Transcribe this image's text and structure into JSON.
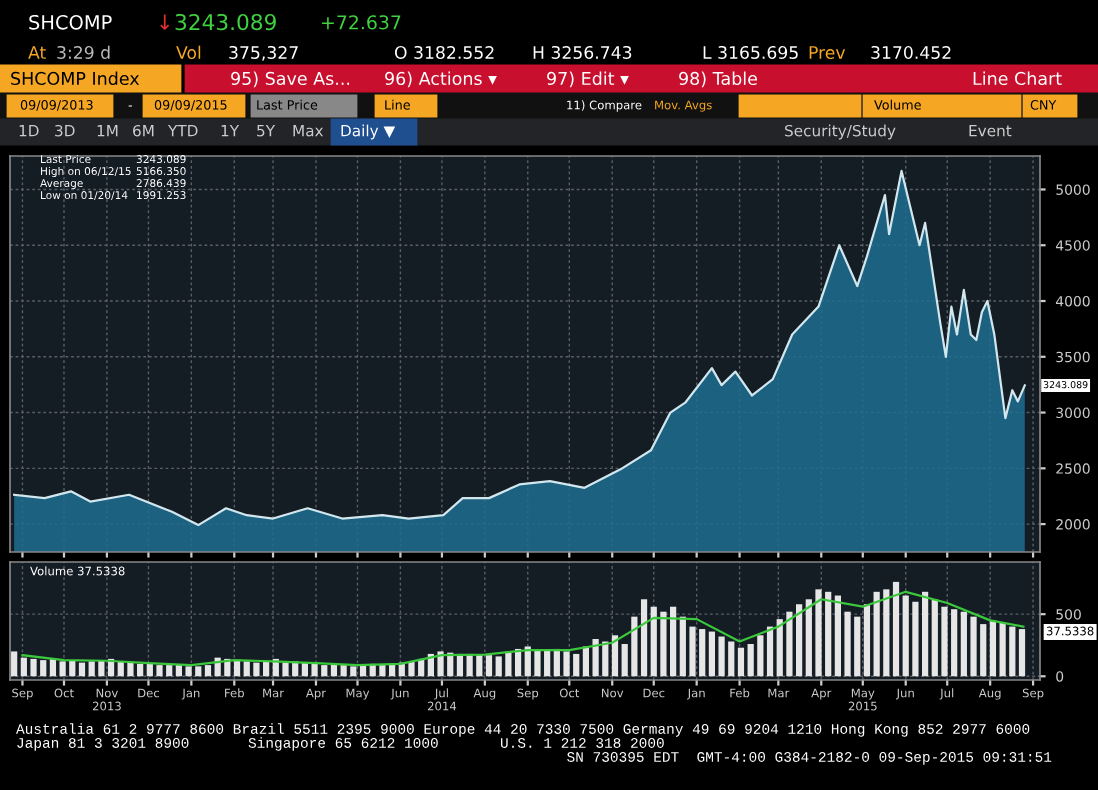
{
  "chart_data": [
    {
      "type": "area",
      "grid": true,
      "tick_labels": "y",
      "xlim": [
        "2013-09-06",
        "2015-09-20"
      ],
      "ylim": [
        1750,
        5300
      ],
      "yticks": [
        2000,
        2500,
        3000,
        3500,
        4000,
        4500,
        5000
      ],
      "xticks": [
        {
          "value": "2013-09-15",
          "label": null
        },
        {
          "value": "2013-10-15",
          "label": null
        },
        {
          "value": "2013-11-15",
          "label": null
        },
        {
          "value": "2013-12-15",
          "label": null
        },
        {
          "value": "2014-01-15",
          "label": null
        },
        {
          "value": "2014-02-15",
          "label": null
        },
        {
          "value": "2014-03-15",
          "label": null
        },
        {
          "value": "2014-04-15",
          "label": null
        },
        {
          "value": "2014-05-15",
          "label": null
        },
        {
          "value": "2014-06-15",
          "label": null
        },
        {
          "value": "2014-07-15",
          "label": null
        },
        {
          "value": "2014-08-15",
          "label": null
        },
        {
          "value": "2014-09-15",
          "label": null
        },
        {
          "value": "2014-10-15",
          "label": null
        },
        {
          "value": "2014-11-15",
          "label": null
        },
        {
          "value": "2014-12-15",
          "label": null
        },
        {
          "value": "2015-01-15",
          "label": null
        },
        {
          "value": "2015-02-15",
          "label": null
        },
        {
          "value": "2015-03-15",
          "label": null
        },
        {
          "value": "2015-04-15",
          "label": null
        },
        {
          "value": "2015-05-15",
          "label": null
        },
        {
          "value": "2015-06-15",
          "label": null
        },
        {
          "value": "2015-07-15",
          "label": null
        },
        {
          "value": "2015-08-15",
          "label": null
        },
        {
          "value": "2015-09-15",
          "label": null
        }
      ],
      "series": [
        {
          "color": "#d2e6ee",
          "x": [
            "2013-09-09",
            "2013-10-01",
            "2013-10-20",
            "2013-11-03",
            "2013-12-01",
            "2014-01-01",
            "2014-01-20",
            "2014-02-09",
            "2014-02-24",
            "2014-03-15",
            "2014-04-09",
            "2014-05-04",
            "2014-06-02",
            "2014-06-21",
            "2014-07-16",
            "2014-07-30",
            "2014-08-18",
            "2014-09-09",
            "2014-10-01",
            "2014-10-26",
            "2014-11-21",
            "2014-12-13",
            "2014-12-27",
            "2015-01-07",
            "2015-01-26",
            "2015-02-02",
            "2015-02-12",
            "2015-02-24",
            "2015-03-11",
            "2015-03-25",
            "2015-04-13",
            "2015-04-28",
            "2015-05-11",
            "2015-05-18",
            "2015-05-31",
            "2015-06-03",
            "2015-06-12",
            "2015-06-25",
            "2015-06-29",
            "2015-07-10",
            "2015-07-14",
            "2015-07-18",
            "2015-07-22",
            "2015-07-27",
            "2015-08-01",
            "2015-08-05",
            "2015-08-09",
            "2015-08-13",
            "2015-08-18",
            "2015-08-26",
            "2015-08-31",
            "2015-09-04",
            "2015-09-09"
          ],
          "values": [
            2263,
            2233,
            2294,
            2202,
            2263,
            2110,
            1991.253,
            2142,
            2080,
            2050,
            2142,
            2050,
            2080,
            2050,
            2080,
            2233,
            2233,
            2356,
            2386,
            2325,
            2491,
            2662,
            3000,
            3092,
            3398,
            3246,
            3367,
            3153,
            3300,
            3700,
            3950,
            4500,
            4134,
            4400,
            4950,
            4600,
            5166.35,
            4500,
            4700,
            3800,
            3500,
            3950,
            3700,
            4100,
            3700,
            3650,
            3900,
            4000,
            3700,
            2950,
            3200,
            3100,
            3243.089
          ]
        }
      ],
      "annotations": [
        "SHCOMP",
        "↓",
        "3243.089",
        "+72.637",
        "At",
        "3:29 d",
        "Vol",
        "375,327",
        "O 3182.552",
        "H 3256.743",
        "L 3165.695",
        "Prev",
        "3170.452",
        "SHCOMP Index",
        "95) Save As...",
        "96) Actions ▾",
        "97) Edit ▾",
        "98) Table",
        "Line Chart",
        "09/09/2013",
        "-",
        "09/09/2015",
        "Last Price",
        "Line",
        "11) Compare",
        "Mov. Avgs",
        "Volume",
        "CNY",
        "1D",
        "3D",
        "1M",
        "6M",
        "YTD",
        "1Y",
        "5Y",
        "Max",
        "Daily ▼",
        "Security/Study",
        "Event",
        "Last Price",
        "3243.089",
        "High on 06/12/15",
        "5166.350",
        "Average",
        "2786.439",
        "Low on 01/20/14",
        "1991.253",
        "3243.089"
      ]
    },
    {
      "type": "bar",
      "grid": true,
      "xlim": [
        "2013-09-06",
        "2015-09-20"
      ],
      "ylim": [
        -30,
        920
      ],
      "yticks": [
        0,
        500
      ],
      "xticks": [
        {
          "value": "2013-09-15",
          "label": "Sep"
        },
        {
          "value": "2013-10-15",
          "label": "Oct"
        },
        {
          "value": "2013-11-15",
          "label": "Nov\n2013"
        },
        {
          "value": "2013-12-15",
          "label": "Dec"
        },
        {
          "value": "2014-01-15",
          "label": "Jan"
        },
        {
          "value": "2014-02-15",
          "label": "Feb"
        },
        {
          "value": "2014-03-15",
          "label": "Mar"
        },
        {
          "value": "2014-04-15",
          "label": "Apr"
        },
        {
          "value": "2014-05-15",
          "label": "May"
        },
        {
          "value": "2014-06-15",
          "label": "Jun"
        },
        {
          "value": "2014-07-15",
          "label": "Jul\n2014"
        },
        {
          "value": "2014-08-15",
          "label": "Aug"
        },
        {
          "value": "2014-09-15",
          "label": "Sep"
        },
        {
          "value": "2014-10-15",
          "label": "Oct"
        },
        {
          "value": "2014-11-15",
          "label": "Nov"
        },
        {
          "value": "2014-12-15",
          "label": "Dec"
        },
        {
          "value": "2015-01-15",
          "label": "Jan"
        },
        {
          "value": "2015-02-15",
          "label": "Feb"
        },
        {
          "value": "2015-03-15",
          "label": "Mar"
        },
        {
          "value": "2015-04-15",
          "label": "Apr"
        },
        {
          "value": "2015-05-15",
          "label": "May\n2015"
        },
        {
          "value": "2015-06-15",
          "label": "Jun"
        },
        {
          "value": "2015-07-15",
          "label": "Jul"
        },
        {
          "value": "2015-08-15",
          "label": "Aug"
        },
        {
          "value": "2015-09-15",
          "label": "Sep"
        }
      ],
      "series": [
        {
          "color": "#e6e6e6",
          "x": [
            "2013-09-09",
            "2013-09-16",
            "2013-09-23",
            "2013-09-30",
            "2013-10-07",
            "2013-10-14",
            "2013-10-21",
            "2013-10-28",
            "2013-11-04",
            "2013-11-11",
            "2013-11-18",
            "2013-11-25",
            "2013-12-02",
            "2013-12-09",
            "2013-12-16",
            "2013-12-23",
            "2013-12-30",
            "2014-01-06",
            "2014-01-13",
            "2014-01-20",
            "2014-01-27",
            "2014-02-03",
            "2014-02-10",
            "2014-02-17",
            "2014-02-24",
            "2014-03-03",
            "2014-03-10",
            "2014-03-17",
            "2014-03-24",
            "2014-03-31",
            "2014-04-07",
            "2014-04-14",
            "2014-04-21",
            "2014-04-28",
            "2014-05-05",
            "2014-05-12",
            "2014-05-19",
            "2014-05-26",
            "2014-06-02",
            "2014-06-09",
            "2014-06-16",
            "2014-06-23",
            "2014-06-30",
            "2014-07-07",
            "2014-07-14",
            "2014-07-21",
            "2014-07-28",
            "2014-08-04",
            "2014-08-11",
            "2014-08-18",
            "2014-08-25",
            "2014-09-01",
            "2014-09-08",
            "2014-09-15",
            "2014-09-22",
            "2014-09-29",
            "2014-10-06",
            "2014-10-13",
            "2014-10-20",
            "2014-10-27",
            "2014-11-03",
            "2014-11-10",
            "2014-11-17",
            "2014-11-24",
            "2014-12-01",
            "2014-12-08",
            "2014-12-15",
            "2014-12-22",
            "2014-12-29",
            "2015-01-05",
            "2015-01-12",
            "2015-01-19",
            "2015-01-26",
            "2015-02-02",
            "2015-02-09",
            "2015-02-16",
            "2015-02-23",
            "2015-03-02",
            "2015-03-09",
            "2015-03-16",
            "2015-03-23",
            "2015-03-30",
            "2015-04-06",
            "2015-04-13",
            "2015-04-20",
            "2015-04-27",
            "2015-05-04",
            "2015-05-11",
            "2015-05-18",
            "2015-05-25",
            "2015-06-01",
            "2015-06-08",
            "2015-06-15",
            "2015-06-22",
            "2015-06-29",
            "2015-07-06",
            "2015-07-13",
            "2015-07-20",
            "2015-07-27",
            "2015-08-03",
            "2015-08-10",
            "2015-08-17",
            "2015-08-24",
            "2015-08-31",
            "2015-09-07"
          ],
          "values": [
            200,
            150,
            140,
            130,
            140,
            120,
            130,
            110,
            120,
            130,
            140,
            120,
            110,
            100,
            100,
            90,
            90,
            90,
            80,
            80,
            90,
            150,
            140,
            130,
            120,
            110,
            120,
            140,
            110,
            120,
            110,
            100,
            90,
            100,
            90,
            80,
            90,
            100,
            90,
            100,
            110,
            120,
            140,
            180,
            200,
            190,
            180,
            180,
            170,
            170,
            160,
            200,
            220,
            240,
            210,
            210,
            220,
            200,
            180,
            240,
            300,
            280,
            330,
            260,
            480,
            620,
            560,
            520,
            560,
            480,
            400,
            380,
            360,
            320,
            280,
            230,
            260,
            330,
            400,
            460,
            520,
            580,
            620,
            700,
            680,
            650,
            520,
            480,
            580,
            680,
            700,
            760,
            650,
            600,
            680,
            620,
            560,
            540,
            520,
            480,
            420,
            450,
            430,
            400,
            380
          ]
        },
        {
          "type": "line",
          "color": "#3cc83c",
          "x": [
            "2013-09-15",
            "2013-10-15",
            "2013-11-15",
            "2013-12-15",
            "2014-01-15",
            "2014-02-15",
            "2014-03-15",
            "2014-04-15",
            "2014-05-15",
            "2014-06-15",
            "2014-07-15",
            "2014-08-15",
            "2014-09-15",
            "2014-10-15",
            "2014-11-15",
            "2014-12-15",
            "2015-01-15",
            "2015-02-15",
            "2015-03-15",
            "2015-04-15",
            "2015-05-15",
            "2015-06-15",
            "2015-07-15",
            "2015-08-15",
            "2015-09-08"
          ],
          "values": [
            170,
            130,
            125,
            105,
            90,
            130,
            120,
            105,
            90,
            100,
            170,
            175,
            210,
            210,
            270,
            470,
            460,
            280,
            400,
            620,
            560,
            680,
            590,
            450,
            400
          ]
        }
      ],
      "annotations": [
        "Volume 37.5338",
        "37.5338",
        "Australia 61 2 9777 8600 Brazil 5511 2395 9000 Europe 44 20 7330 7500 Germany 49 69 9204 1210 Hong Kong 852 2977 6000",
        "Japan 81 3 3201 8900",
        "Singapore 65 6212 1000",
        "U.S. 1 212 318 2000",
        "SN 730395 EDT  GMT-4:00 G384-2182-0 09-Sep-2015 09:31:51"
      ]
    }
  ]
}
